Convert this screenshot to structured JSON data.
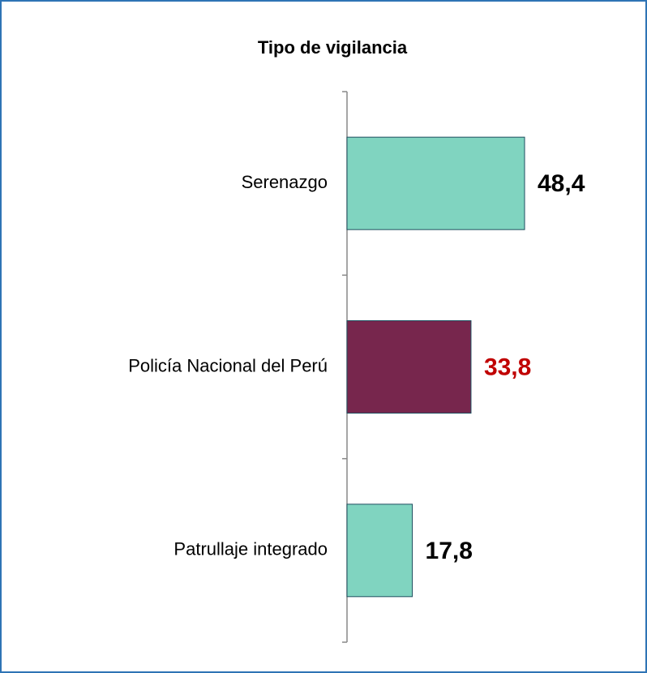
{
  "chart_data": {
    "type": "barh",
    "title": "Tipo de vigilancia",
    "categories": [
      "Serenazgo",
      "Policía Nacional del Perú",
      "Patrullaje integrado"
    ],
    "values": [
      48.4,
      33.8,
      17.8
    ],
    "value_labels": [
      "48,4",
      "33,8",
      "17,8"
    ],
    "colors": [
      "#80d4c0",
      "#77264d",
      "#80d4c0"
    ],
    "value_label_colors": [
      "#000000",
      "#c00000",
      "#000000"
    ],
    "xlim": [
      0,
      80
    ]
  }
}
